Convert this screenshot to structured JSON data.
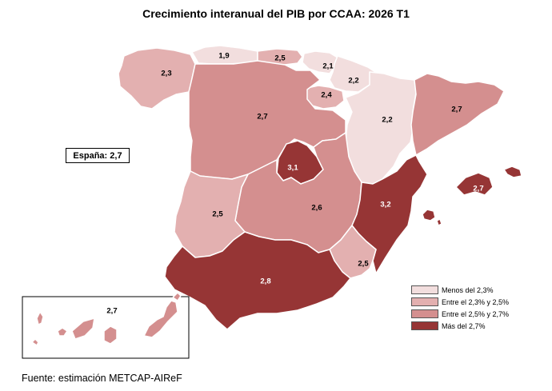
{
  "title": "Crecimiento interanual del PIB por CCAA: 2026 T1",
  "national": "España: 2,7",
  "source": "Fuente: estimación METCAP-AIReF",
  "colors": {
    "class1": "#f2dede",
    "class2": "#e3b0b0",
    "class3": "#d48f8f",
    "class4": "#963535",
    "border": "#ffffff",
    "inset_border": "#000000",
    "label_dark": "#000000",
    "label_light": "#ffffff"
  },
  "legend": [
    {
      "class": "class1",
      "label": "Menos del 2,3%"
    },
    {
      "class": "class2",
      "label": "Entre el 2,3% y 2,5%"
    },
    {
      "class": "class3",
      "label": "Entre el 2,5% y 2,7%"
    },
    {
      "class": "class4",
      "label": "Más del 2,7%"
    }
  ],
  "regions": [
    {
      "id": "galicia",
      "value": "2,3",
      "class": "class2"
    },
    {
      "id": "asturias",
      "value": "1,9",
      "class": "class1"
    },
    {
      "id": "cantabria",
      "value": "2,5",
      "class": "class2"
    },
    {
      "id": "pais-vasco",
      "value": "2,1",
      "class": "class1"
    },
    {
      "id": "navarra",
      "value": "2,2",
      "class": "class1"
    },
    {
      "id": "la-rioja",
      "value": "2,4",
      "class": "class2"
    },
    {
      "id": "aragon",
      "value": "2,2",
      "class": "class1"
    },
    {
      "id": "cataluna",
      "value": "2,7",
      "class": "class3"
    },
    {
      "id": "castilla-y-leon",
      "value": "2,7",
      "class": "class3"
    },
    {
      "id": "madrid",
      "value": "3,1",
      "class": "class4"
    },
    {
      "id": "castilla-la-mancha",
      "value": "2,6",
      "class": "class3"
    },
    {
      "id": "extremadura",
      "value": "2,5",
      "class": "class2"
    },
    {
      "id": "comunidad-valenciana",
      "value": "3,2",
      "class": "class4"
    },
    {
      "id": "illes-balears",
      "value": "2,7",
      "class": "class4"
    },
    {
      "id": "region-de-murcia",
      "value": "2,5",
      "class": "class2"
    },
    {
      "id": "andalucia",
      "value": "2,8",
      "class": "class4"
    },
    {
      "id": "canarias",
      "value": "2,7",
      "class": "class3"
    }
  ]
}
